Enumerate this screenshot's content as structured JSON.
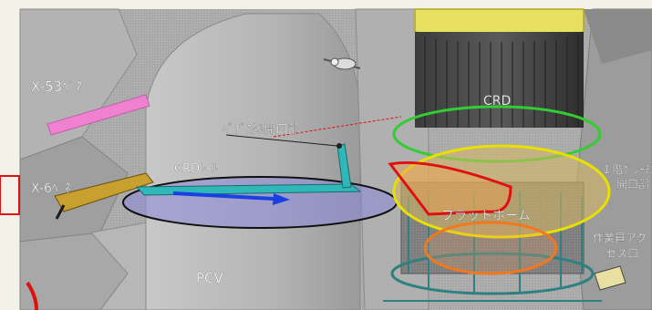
{
  "labels": {
    "x53": "X-53ﾍﾟﾈ",
    "x6": "X-6ﾍﾟﾈ",
    "crd_rail": "CRDﾚｰﾙ",
    "pedestal_opening": "ﾍﾟﾃﾞｽﾀﾙ開口部",
    "crd": "CRD",
    "platform": "プラットホーム",
    "grating_1f_line1": "１階ｸﾞﾚｰﾁﾝｸﾞ",
    "grating_1f_line2": "開口部",
    "worker_access_line1": "作業員アク",
    "worker_access_line2": "セス口",
    "pcv": "PCV"
  },
  "colors": {
    "background": "#f4f1e9",
    "structure_gray": "#a6a6a6",
    "label_white": "#ffffff",
    "crd_ellipse": "#33cc33",
    "platform_ellipse": "#e8e000",
    "platform_fill": "#d9b860",
    "red_outline": "#e01010",
    "orange_ellipse": "#f07820",
    "rail_ellipse_fill": "#8a86d8",
    "rail_color": "#30b8b8",
    "arrow_blue": "#1a40e0",
    "pink_pipe": "#f080d0",
    "yellow_vessel": "#e8e060"
  }
}
